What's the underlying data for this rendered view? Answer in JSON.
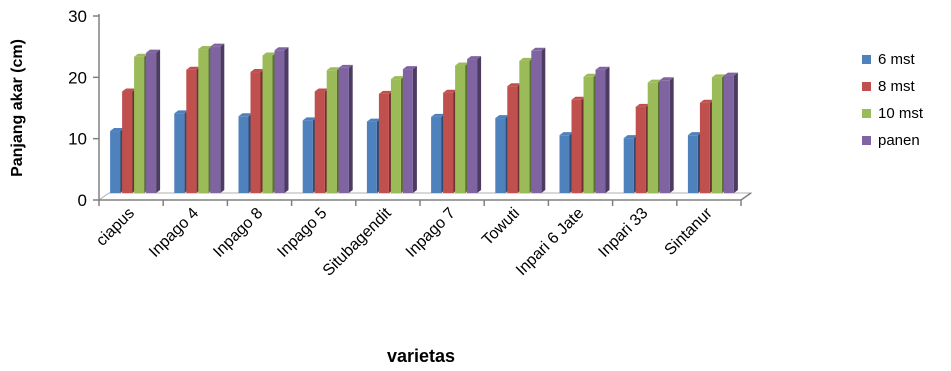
{
  "chart_data": {
    "type": "bar",
    "title": "",
    "xlabel": "varietas",
    "ylabel": "Panjang akar (cm)",
    "ylim": [
      0,
      30
    ],
    "yticks": [
      0,
      10,
      20,
      30
    ],
    "grid": false,
    "legend_position": "right",
    "categories": [
      "ciapus",
      "Inpago 4",
      "Inpago 8",
      "Inpago 5",
      "Situbagendit",
      "Inpago 7",
      "Towuti",
      "Inpari 6 Jate",
      "Inpari 33",
      "Sintanur"
    ],
    "series": [
      {
        "name": "6 mst",
        "color": "#4f81bd",
        "values": [
          10.5,
          13.5,
          13.0,
          12.3,
          12.1,
          12.9,
          12.7,
          9.8,
          9.3,
          9.8
        ]
      },
      {
        "name": "8 mst",
        "color": "#c0504d",
        "values": [
          17.2,
          20.9,
          20.5,
          17.2,
          16.8,
          17.0,
          18.1,
          15.8,
          14.6,
          15.3
        ]
      },
      {
        "name": "10 mst",
        "color": "#9bbb59",
        "values": [
          23.1,
          24.4,
          23.3,
          20.8,
          19.3,
          21.6,
          22.4,
          19.7,
          18.7,
          19.6
        ]
      },
      {
        "name": "panen",
        "color": "#8064a2",
        "values": [
          23.8,
          24.8,
          24.2,
          21.2,
          21.0,
          22.7,
          24.1,
          20.9,
          19.1,
          19.9
        ]
      }
    ]
  }
}
